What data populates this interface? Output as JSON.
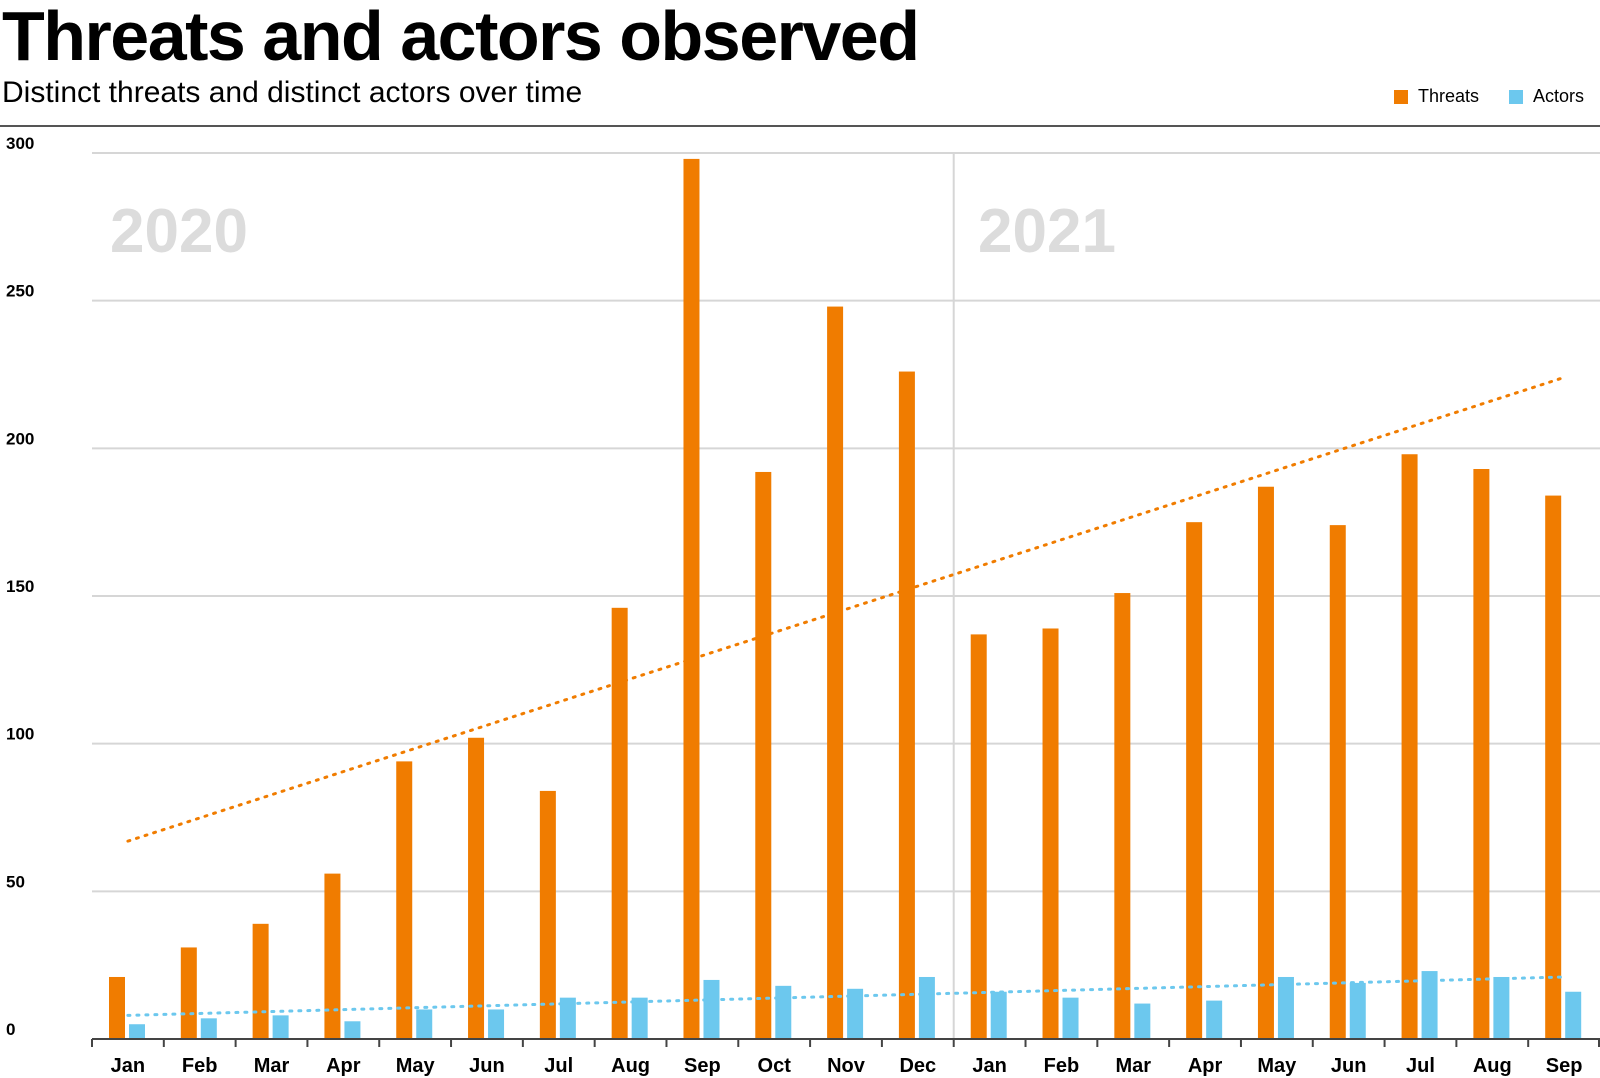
{
  "title": "Threats and actors observed",
  "subtitle": "Distinct threats and distinct actors over time",
  "colors": {
    "threats": "#F07C00",
    "actors": "#6CC8EE"
  },
  "chart_data": {
    "type": "bar",
    "categories": [
      "Jan",
      "Feb",
      "Mar",
      "Apr",
      "May",
      "Jun",
      "Jul",
      "Aug",
      "Sep",
      "Oct",
      "Nov",
      "Dec",
      "Jan",
      "Feb",
      "Mar",
      "Apr",
      "May",
      "Jun",
      "Jul",
      "Aug",
      "Sep"
    ],
    "series": [
      {
        "name": "Threats",
        "values": [
          21,
          31,
          39,
          56,
          94,
          102,
          84,
          146,
          298,
          192,
          248,
          226,
          137,
          139,
          151,
          175,
          187,
          174,
          198,
          193,
          184
        ]
      },
      {
        "name": "Actors",
        "values": [
          5,
          7,
          8,
          6,
          10,
          10,
          14,
          14,
          20,
          18,
          17,
          21,
          16,
          14,
          12,
          13,
          21,
          19,
          23,
          21,
          16
        ]
      }
    ],
    "trendlines": [
      {
        "series": "Threats",
        "start": 67,
        "end": 224,
        "style": "dotted"
      },
      {
        "series": "Actors",
        "start": 8,
        "end": 21,
        "style": "dotted"
      }
    ],
    "year_labels": [
      "2020",
      "2021"
    ],
    "yticks": [
      0,
      50,
      100,
      150,
      200,
      250,
      300
    ],
    "ylim": [
      0,
      300
    ],
    "grid": true,
    "legend_position": "top-right"
  }
}
